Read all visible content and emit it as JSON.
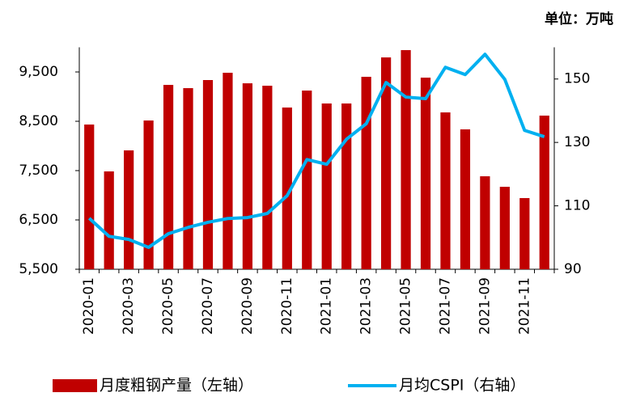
{
  "chart_data": {
    "type": "bar_line",
    "unit_label": "单位：万吨",
    "categories": [
      "2020-01",
      null,
      "2020-03",
      null,
      "2020-05",
      null,
      "2020-07",
      null,
      "2020-09",
      null,
      "2020-11",
      null,
      "2021-01",
      null,
      "2021-03",
      null,
      "2021-05",
      null,
      "2021-07",
      null,
      "2021-09",
      null,
      "2021-11",
      null
    ],
    "series": [
      {
        "name": "月度粗钢产量（左轴）",
        "color": "#c00000",
        "kind": "bar",
        "values": [
          8434,
          7484,
          7910,
          8516,
          9238,
          9172,
          9336,
          9484,
          9270,
          9221,
          8779,
          9123,
          8861,
          8861,
          9402,
          9795,
          9943,
          9385,
          8680,
          8336,
          7385,
          7172,
          6943,
          8615
        ]
      },
      {
        "name": "月均CSPI（右轴）",
        "color": "#00b0f0",
        "kind": "line",
        "axis": "y2",
        "values": [
          106.1,
          100.4,
          99.4,
          96.9,
          101.2,
          103.2,
          104.8,
          106.0,
          106.3,
          107.6,
          113.2,
          124.6,
          123.1,
          131.0,
          135.9,
          148.9,
          144.3,
          143.8,
          153.7,
          151.4,
          157.8,
          149.9,
          133.8,
          131.8
        ]
      }
    ],
    "ylim": [
      5500,
      10000
    ],
    "yticks": [
      {
        "value": 5500,
        "label": "5,500"
      },
      {
        "value": 6500,
        "label": "6,500"
      },
      {
        "value": 7500,
        "label": "7,500"
      },
      {
        "value": 8500,
        "label": "8,500"
      },
      {
        "value": 9500,
        "label": "9,500"
      }
    ],
    "y2lim": [
      90,
      160
    ],
    "y2ticks": [
      90,
      110,
      130,
      150
    ]
  }
}
